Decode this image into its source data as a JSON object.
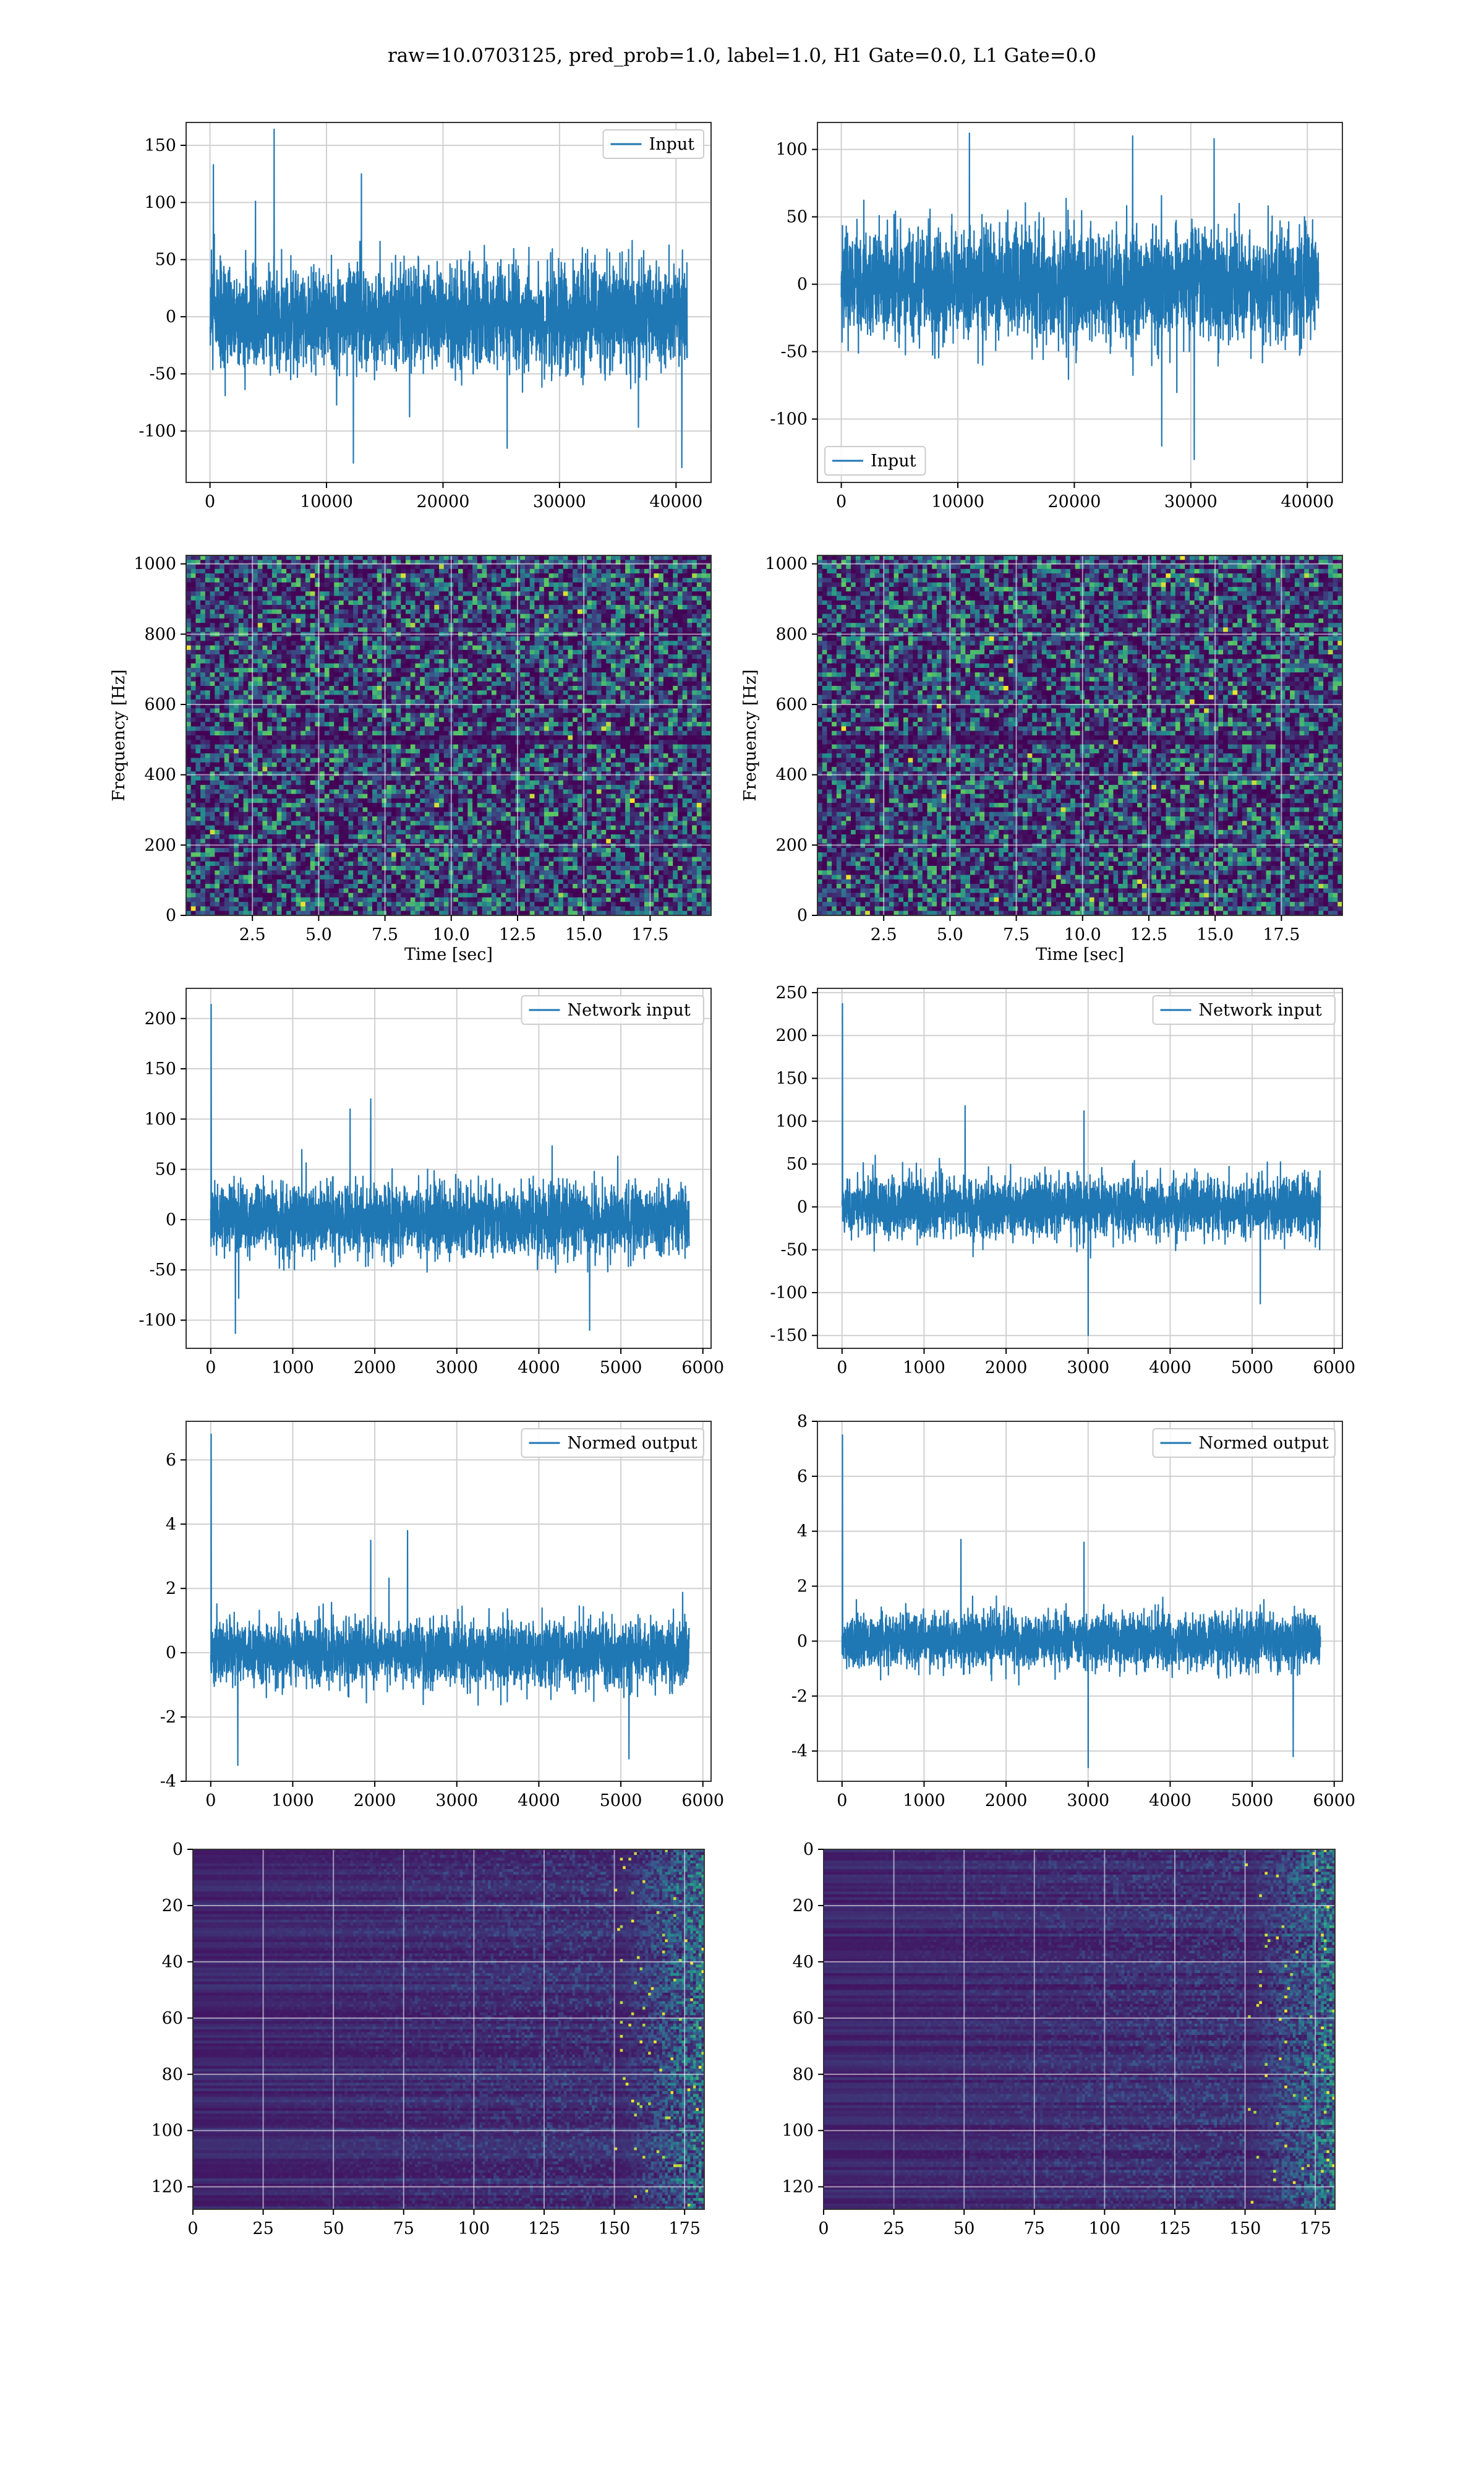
{
  "figure": {
    "suptitle": "raw=10.0703125, pred_prob=1.0, label=1.0, H1 Gate=0.0, L1 Gate=0.0"
  },
  "colors": {
    "line": "#1f77b4",
    "viridis_low": "#440154",
    "viridis_mid": "#21918c",
    "viridis_high": "#fde725",
    "grid": "#d0d0d0"
  },
  "chart_data": [
    {
      "id": "h1_input",
      "type": "line",
      "title": "",
      "xlabel": "",
      "ylabel": "",
      "legend": {
        "label": "Input",
        "placement": "upper right"
      },
      "xlim": [
        -2048,
        43008
      ],
      "ylim": [
        -145,
        170
      ],
      "xticks": [
        0,
        10000,
        20000,
        30000,
        40000
      ],
      "yticks": [
        -100,
        -50,
        0,
        50,
        100,
        150
      ],
      "signal": {
        "n": 40960,
        "x_start": 0,
        "x_end": 40960,
        "center": 0,
        "envelope": 60,
        "noise_std": 22,
        "spikes": [
          [
            5500,
            164
          ],
          [
            300,
            133
          ],
          [
            40500,
            -132
          ],
          [
            12300,
            -128
          ],
          [
            25500,
            -115
          ],
          [
            13000,
            125
          ]
        ]
      },
      "grid": true
    },
    {
      "id": "l1_input",
      "type": "line",
      "title": "",
      "xlabel": "",
      "ylabel": "",
      "legend": {
        "label": "Input",
        "placement": "lower left"
      },
      "xlim": [
        -2048,
        43008
      ],
      "ylim": [
        -147,
        120
      ],
      "xticks": [
        0,
        10000,
        20000,
        30000,
        40000
      ],
      "yticks": [
        -100,
        -50,
        0,
        50,
        100
      ],
      "signal": {
        "n": 40960,
        "x_start": 0,
        "x_end": 40960,
        "center": 0,
        "envelope": 55,
        "noise_std": 20,
        "spikes": [
          [
            30300,
            -130
          ],
          [
            27500,
            -120
          ],
          [
            11000,
            112
          ],
          [
            25000,
            110
          ],
          [
            32000,
            108
          ]
        ]
      },
      "grid": true
    },
    {
      "id": "h1_spectrogram",
      "type": "heatmap",
      "title": "",
      "xlabel": "Time [sec]",
      "ylabel": "Frequency [Hz]",
      "xlim": [
        0,
        19.8
      ],
      "ylim": [
        0,
        1024
      ],
      "xticks": [
        2.5,
        5.0,
        7.5,
        10.0,
        12.5,
        15.0,
        17.5
      ],
      "yticks": [
        0,
        200,
        400,
        600,
        800,
        1000
      ],
      "colormap": "viridis",
      "grid": true,
      "features": {
        "dark_band_hz": 500
      }
    },
    {
      "id": "l1_spectrogram",
      "type": "heatmap",
      "title": "",
      "xlabel": "Time [sec]",
      "ylabel": "Frequency [Hz]",
      "xlim": [
        0,
        19.8
      ],
      "ylim": [
        0,
        1024
      ],
      "xticks": [
        2.5,
        5.0,
        7.5,
        10.0,
        12.5,
        15.0,
        17.5
      ],
      "yticks": [
        0,
        200,
        400,
        600,
        800,
        1000
      ],
      "colormap": "viridis",
      "grid": true,
      "features": {
        "dark_band_hz": 500
      }
    },
    {
      "id": "h1_network_input",
      "type": "line",
      "title": "",
      "xlabel": "",
      "ylabel": "",
      "legend": {
        "label": "Network input",
        "placement": "upper right"
      },
      "xlim": [
        -300,
        6100
      ],
      "ylim": [
        -128,
        230
      ],
      "xticks": [
        0,
        1000,
        2000,
        3000,
        4000,
        5000,
        6000
      ],
      "yticks": [
        -100,
        -50,
        0,
        50,
        100,
        150,
        200
      ],
      "signal": {
        "n": 5832,
        "x_start": 0,
        "x_end": 5832,
        "center": 0,
        "envelope": 45,
        "noise_std": 17,
        "spikes": [
          [
            5,
            214
          ],
          [
            1950,
            120
          ],
          [
            300,
            -113
          ],
          [
            4620,
            -110
          ],
          [
            1700,
            110
          ]
        ]
      },
      "grid": true
    },
    {
      "id": "l1_network_input",
      "type": "line",
      "title": "",
      "xlabel": "",
      "ylabel": "",
      "legend": {
        "label": "Network input",
        "placement": "upper right"
      },
      "xlim": [
        -300,
        6100
      ],
      "ylim": [
        -165,
        255
      ],
      "xticks": [
        0,
        1000,
        2000,
        3000,
        4000,
        5000,
        6000
      ],
      "yticks": [
        -150,
        -100,
        -50,
        0,
        50,
        100,
        150,
        200,
        250
      ],
      "signal": {
        "n": 5832,
        "x_start": 0,
        "x_end": 5832,
        "center": 0,
        "envelope": 45,
        "noise_std": 17,
        "spikes": [
          [
            5,
            237
          ],
          [
            3000,
            -150
          ],
          [
            1500,
            118
          ],
          [
            2950,
            112
          ],
          [
            5100,
            -113
          ]
        ]
      },
      "grid": true
    },
    {
      "id": "h1_normed_output",
      "type": "line",
      "title": "",
      "xlabel": "",
      "ylabel": "",
      "legend": {
        "label": "Normed output",
        "placement": "upper right"
      },
      "xlim": [
        -300,
        6100
      ],
      "ylim": [
        -4,
        7.2
      ],
      "xticks": [
        0,
        1000,
        2000,
        3000,
        4000,
        5000,
        6000
      ],
      "yticks": [
        -4,
        -2,
        0,
        2,
        4,
        6
      ],
      "signal": {
        "n": 5832,
        "x_start": 0,
        "x_end": 5832,
        "center": 0,
        "envelope": 1.2,
        "noise_std": 0.48,
        "spikes": [
          [
            5,
            6.8
          ],
          [
            2400,
            3.8
          ],
          [
            330,
            -3.5
          ],
          [
            5100,
            -3.3
          ],
          [
            1950,
            3.5
          ]
        ]
      },
      "grid": true
    },
    {
      "id": "l1_normed_output",
      "type": "line",
      "title": "",
      "xlabel": "",
      "ylabel": "",
      "legend": {
        "label": "Normed output",
        "placement": "upper right"
      },
      "xlim": [
        -300,
        6100
      ],
      "ylim": [
        -5.1,
        8
      ],
      "xticks": [
        0,
        1000,
        2000,
        3000,
        4000,
        5000,
        6000
      ],
      "yticks": [
        -4,
        -2,
        0,
        2,
        4,
        6,
        8
      ],
      "signal": {
        "n": 5832,
        "x_start": 0,
        "x_end": 5832,
        "center": 0,
        "envelope": 1.2,
        "noise_std": 0.48,
        "spikes": [
          [
            5,
            7.5
          ],
          [
            3000,
            -4.6
          ],
          [
            1450,
            3.7
          ],
          [
            2950,
            3.6
          ],
          [
            5500,
            -4.2
          ]
        ]
      },
      "grid": true
    },
    {
      "id": "h1_feature_map",
      "type": "heatmap",
      "title": "",
      "xlabel": "",
      "ylabel": "",
      "xlim": [
        0,
        182
      ],
      "ylim": [
        128,
        0
      ],
      "xticks": [
        0,
        25,
        50,
        75,
        100,
        125,
        150,
        175
      ],
      "yticks": [
        0,
        20,
        40,
        60,
        80,
        100,
        120
      ],
      "colormap": "viridis",
      "grid": true,
      "features": {
        "bright_columns_from": 150
      }
    },
    {
      "id": "l1_feature_map",
      "type": "heatmap",
      "title": "",
      "xlabel": "",
      "ylabel": "",
      "xlim": [
        0,
        182
      ],
      "ylim": [
        128,
        0
      ],
      "xticks": [
        0,
        25,
        50,
        75,
        100,
        125,
        150,
        175
      ],
      "yticks": [
        0,
        20,
        40,
        60,
        80,
        100,
        120
      ],
      "colormap": "viridis",
      "grid": true,
      "features": {
        "bright_columns_from": 150
      }
    }
  ]
}
